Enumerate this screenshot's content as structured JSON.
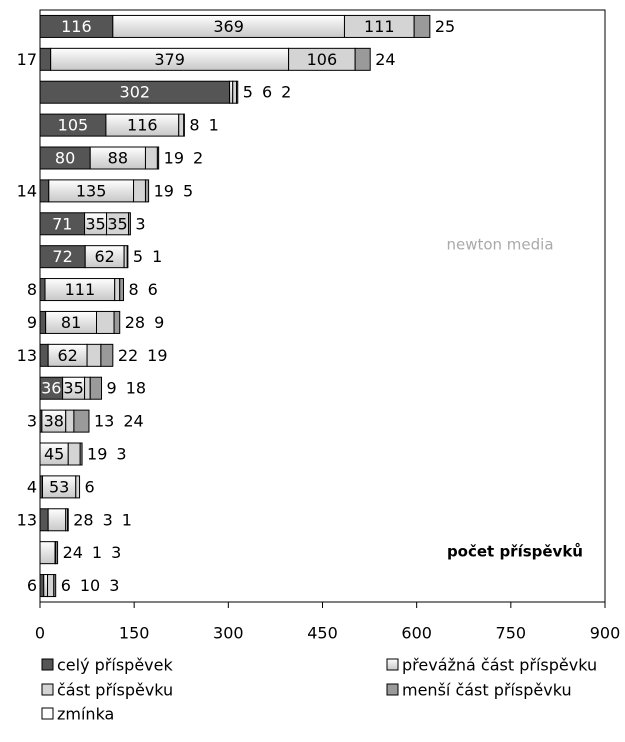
{
  "chart_data": {
    "type": "stacked-barh",
    "annotation": "počet příspěvků",
    "watermark": "newton media",
    "xlim": [
      0,
      900
    ],
    "xticks": [
      0,
      150,
      300,
      450,
      600,
      750,
      900
    ],
    "series": [
      {
        "name": "celý příspěvek",
        "color": "#555555",
        "values": [
          116,
          17,
          302,
          105,
          80,
          14,
          71,
          72,
          8,
          9,
          13,
          36,
          3,
          0,
          4,
          13,
          0,
          6
        ]
      },
      {
        "name": "převážná část příspěvku",
        "color": "#ececec",
        "values": [
          369,
          379,
          5,
          116,
          88,
          135,
          35,
          62,
          111,
          81,
          62,
          35,
          38,
          45,
          53,
          28,
          24,
          6
        ]
      },
      {
        "name": "část příspěvku",
        "color": "#d4d4d4",
        "values": [
          111,
          106,
          6,
          8,
          19,
          19,
          35,
          5,
          8,
          28,
          22,
          9,
          13,
          19,
          6,
          3,
          1,
          10
        ]
      },
      {
        "name": "menší část příspěvku",
        "color": "#9a9a9a",
        "values": [
          25,
          24,
          2,
          1,
          2,
          5,
          3,
          1,
          6,
          9,
          19,
          18,
          24,
          3,
          0,
          1,
          3,
          3
        ]
      },
      {
        "name": "zmínka",
        "color": "#ffffff",
        "values": [
          0,
          0,
          0,
          0,
          0,
          0,
          0,
          0,
          0,
          0,
          0,
          0,
          0,
          0,
          0,
          0,
          0,
          0
        ]
      }
    ],
    "legend": "bottom"
  }
}
